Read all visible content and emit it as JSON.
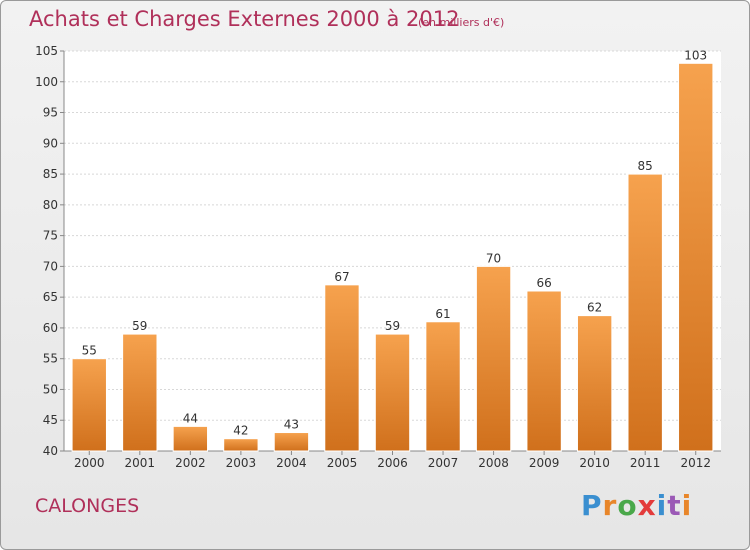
{
  "chart_data": {
    "type": "bar",
    "title": "Achats et Charges Externes 2000 à 2012",
    "subtitle": "(en milliers d'€)",
    "xlabel": "",
    "ylabel": "",
    "categories": [
      "2000",
      "2001",
      "2002",
      "2003",
      "2004",
      "2005",
      "2006",
      "2007",
      "2008",
      "2009",
      "2010",
      "2011",
      "2012"
    ],
    "values": [
      55,
      59,
      44,
      42,
      43,
      67,
      59,
      61,
      70,
      66,
      62,
      85,
      103
    ],
    "ylim": [
      40,
      105
    ],
    "yticks": [
      40,
      45,
      50,
      55,
      60,
      65,
      70,
      75,
      80,
      85,
      90,
      95,
      100,
      105
    ],
    "grid": true,
    "bar_color_top": "#f6a24e",
    "bar_color_bottom": "#d0701c"
  },
  "footer": {
    "commune": "CALONGES",
    "logo": "Proxiti",
    "logo_colors": [
      "#3a8fd0",
      "#e8862a",
      "#4aa84a",
      "#e33b3b",
      "#3a8fd0",
      "#9b59b6",
      "#e8862a"
    ]
  }
}
